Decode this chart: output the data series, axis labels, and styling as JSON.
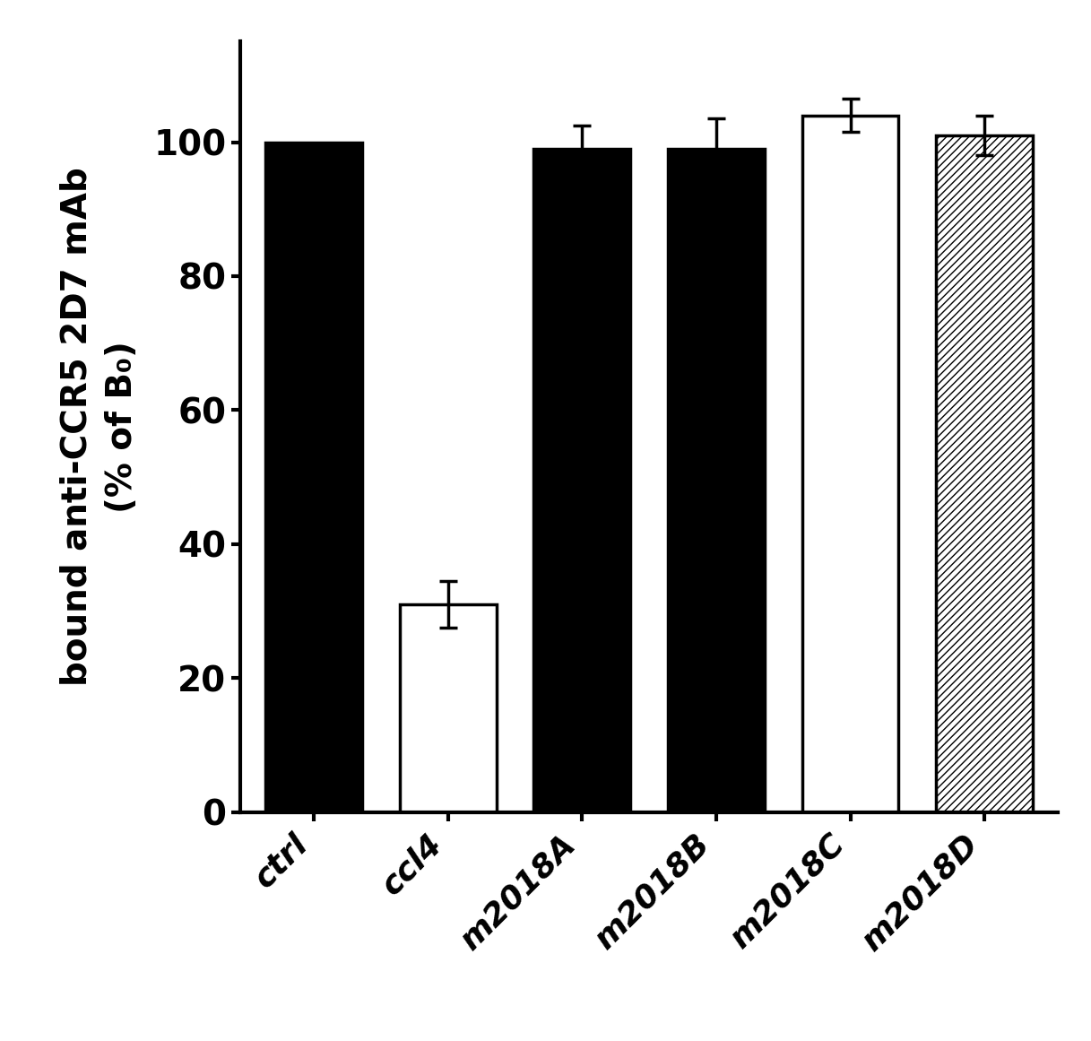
{
  "categories": [
    "ctrl",
    "ccl4",
    "m2018A",
    "m2018B",
    "m2018C",
    "m2018D"
  ],
  "values": [
    100,
    31,
    99,
    99,
    104,
    101
  ],
  "errors": [
    0,
    3.5,
    3.5,
    4.5,
    2.5,
    3.0
  ],
  "bar_styles": [
    "black",
    "white",
    "black",
    "black",
    "white",
    "hatch"
  ],
  "ylabel_line1": "bound anti-CCR5 2D7 mAb",
  "ylabel_line2": "(% of B₀)",
  "ylim": [
    0,
    115
  ],
  "yticks": [
    0,
    20,
    40,
    60,
    80,
    100
  ],
  "background_color": "#ffffff",
  "bar_edgecolor": "#000000",
  "bar_width": 0.72,
  "tick_fontsize": 28,
  "label_fontsize": 28,
  "xticklabel_fontsize": 26
}
